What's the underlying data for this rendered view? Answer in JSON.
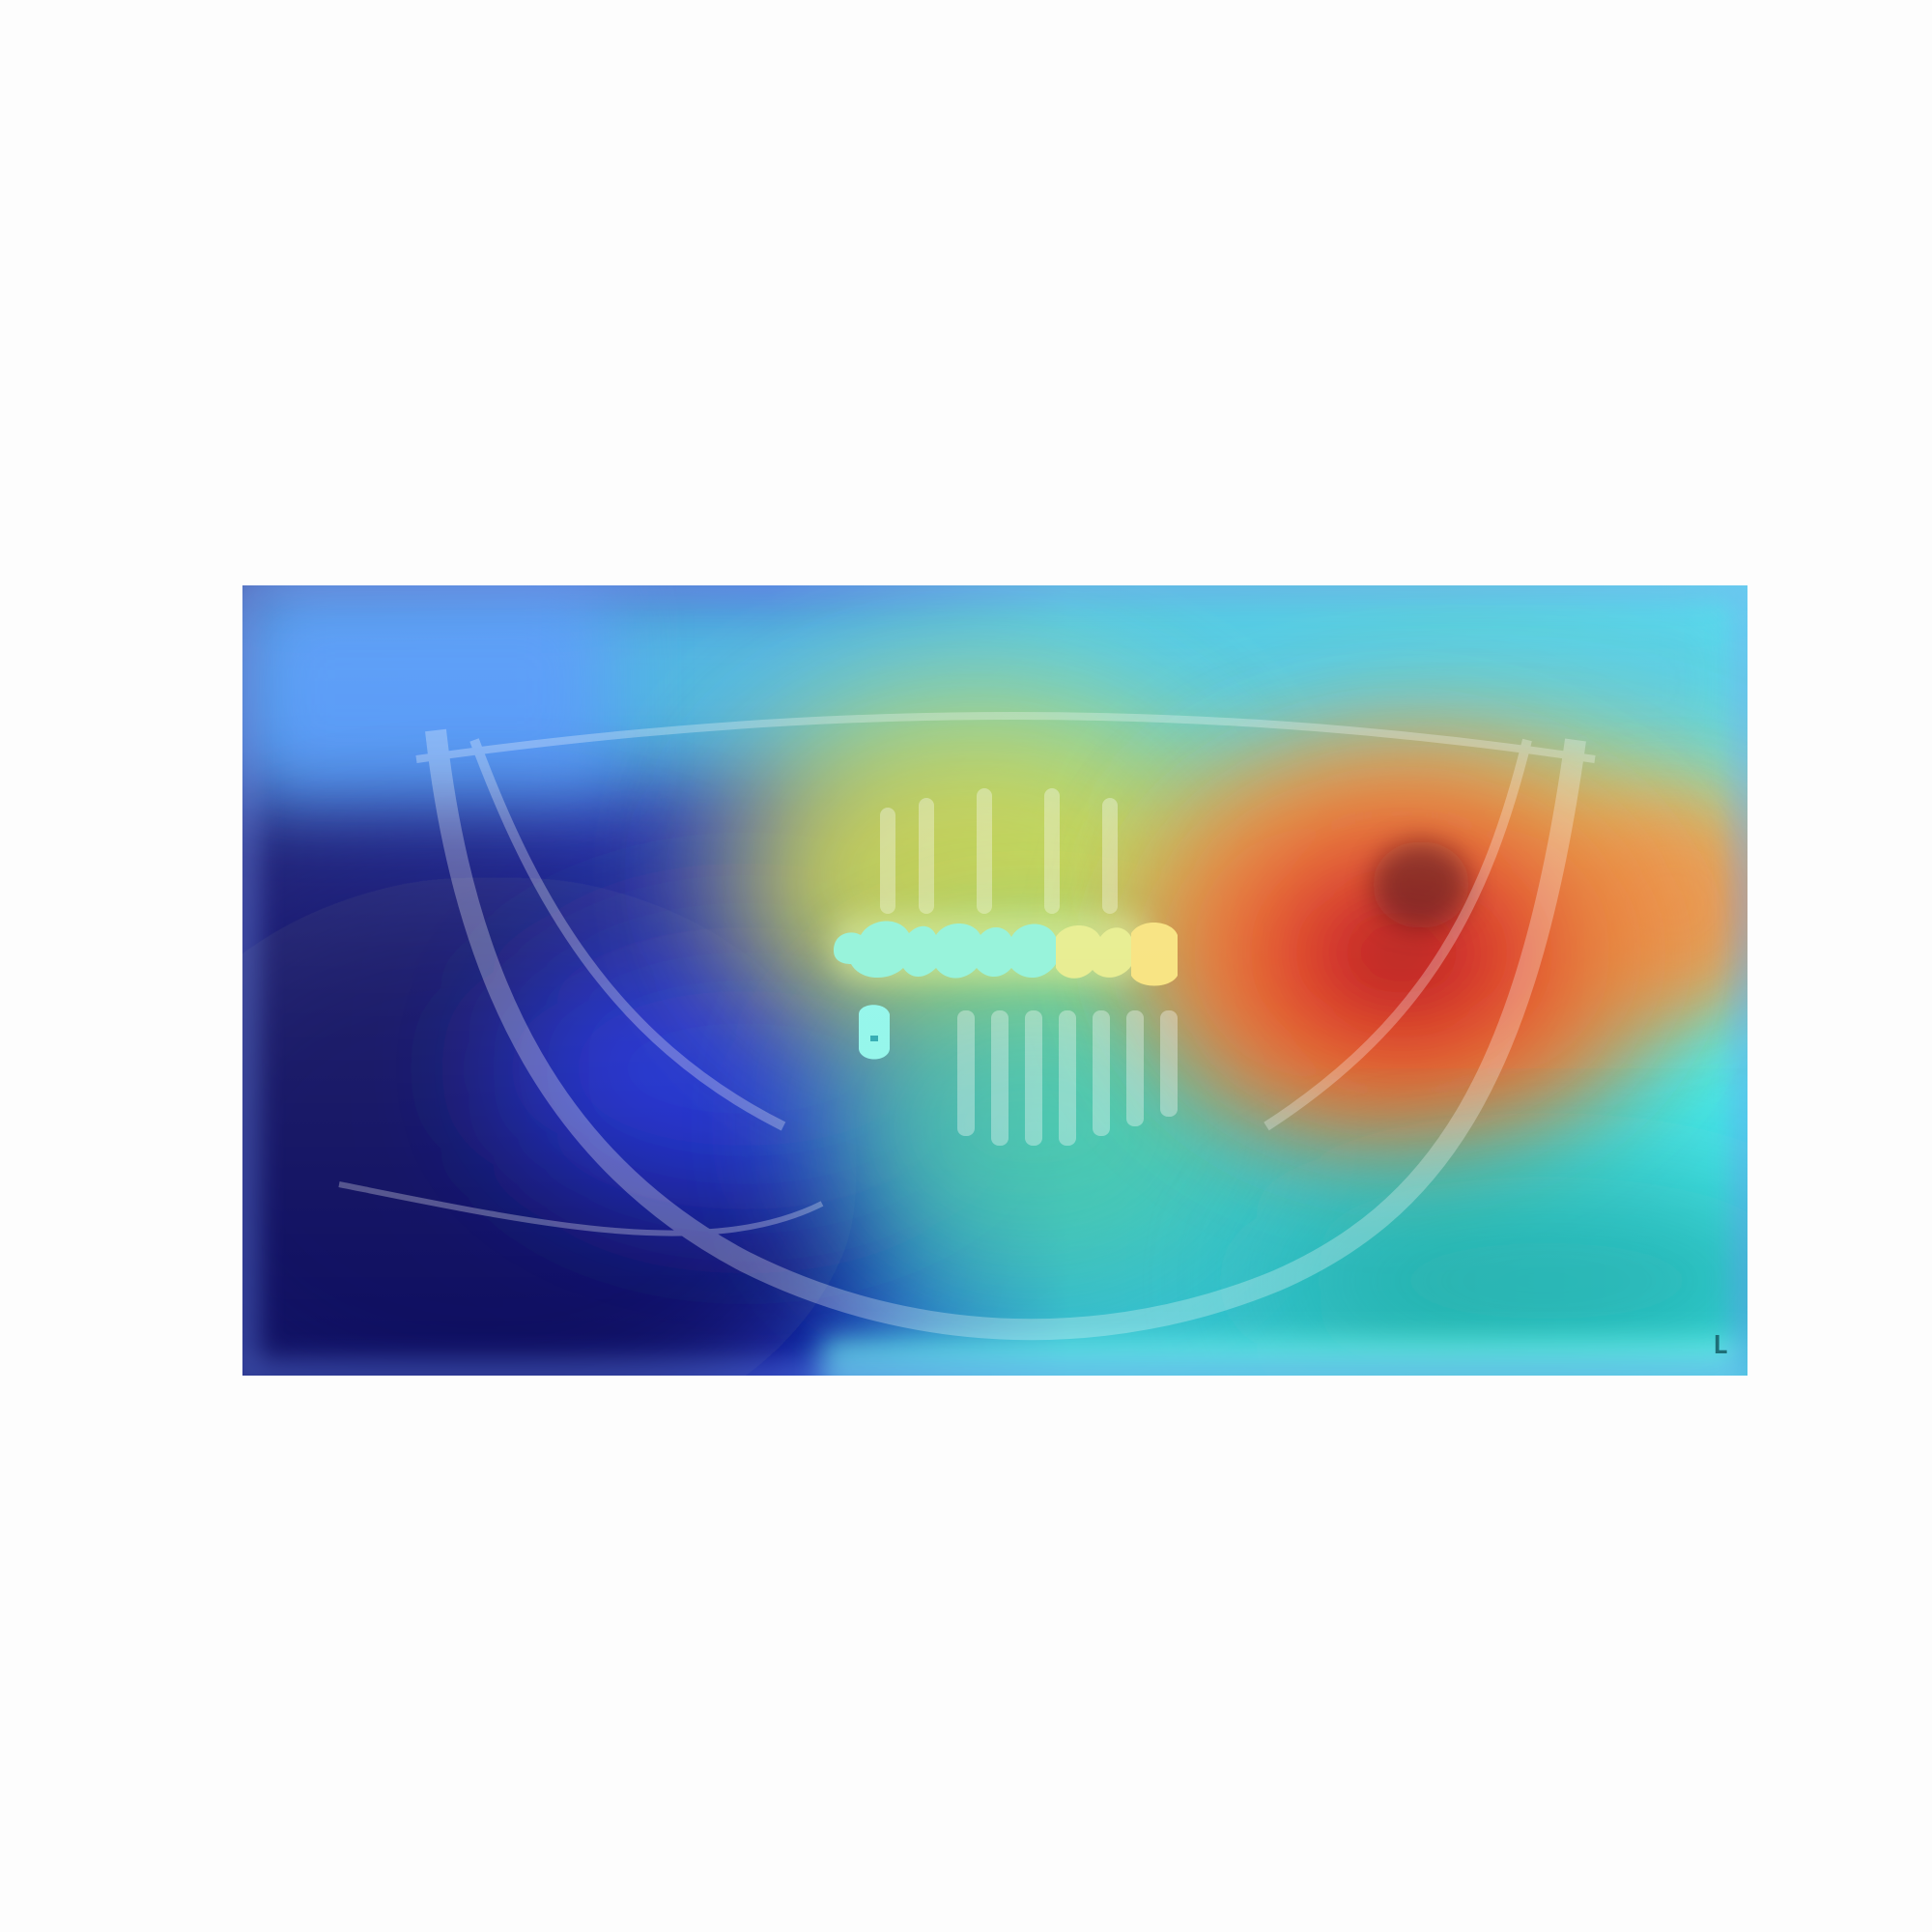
{
  "image": {
    "subject": "panoramic-dental-xray",
    "overlay": "attention-heatmap",
    "colormap": "jet",
    "colors": {
      "low": "#0a0a6e",
      "mid_low": "#2a5cff",
      "mid": "#3fe0e8",
      "mid_high": "#e8e23a",
      "high": "#d81b1b",
      "hotspot": "#7a0a0a"
    },
    "side_marker": "L"
  }
}
